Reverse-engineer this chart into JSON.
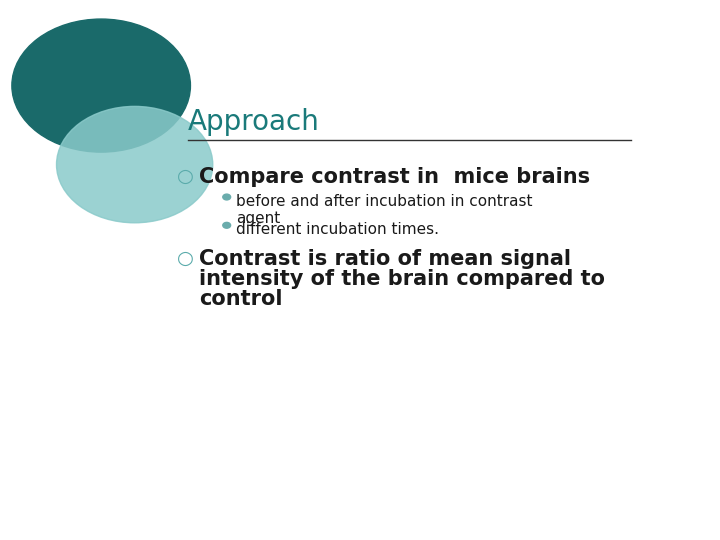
{
  "title": "Approach",
  "title_color": "#1a7a7a",
  "title_fontsize": 20,
  "background_color": "#FFFFFF",
  "line_color": "#333333",
  "bullet1_text": "Compare contrast in  mice brains",
  "bullet1_fontsize": 15,
  "sub_bullet1_line1": "before and after incubation in contrast",
  "sub_bullet1_line2": "agent",
  "sub_bullet2": "different incubation times.",
  "sub_bullet_fontsize": 11,
  "bullet2_line1": "Contrast is ratio of mean signal",
  "bullet2_line2": "intensity of the brain compared to",
  "bullet2_line3": "control",
  "bullet2_fontsize": 15,
  "text_color": "#1a1a1a",
  "open_bullet_color": "#5aabab",
  "sub_bullet_dot_color": "#6aacac",
  "circle1_color": "#1a6a6a",
  "circle2_color": "#8acaca"
}
